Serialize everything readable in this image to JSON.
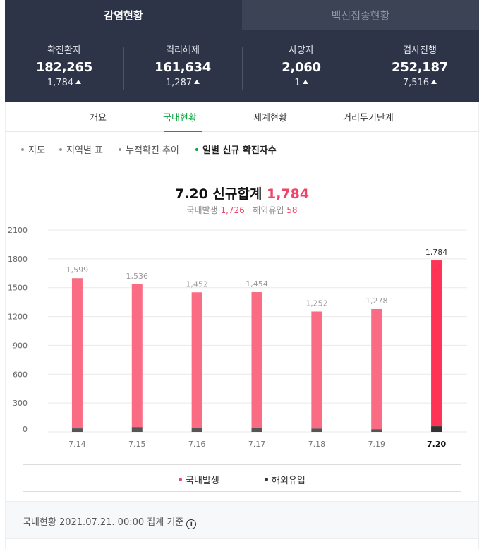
{
  "tabs": {
    "active": "감염현황",
    "inactive": "백신접종현황"
  },
  "stats": [
    {
      "label": "확진환자",
      "value": "182,265",
      "change": "1,784"
    },
    {
      "label": "격리해제",
      "value": "161,634",
      "change": "1,287"
    },
    {
      "label": "사망자",
      "value": "2,060",
      "change": "1"
    },
    {
      "label": "검사진행",
      "value": "252,187",
      "change": "7,516"
    }
  ],
  "subnav": [
    "개요",
    "국내현황",
    "세계현황",
    "거리두기단계"
  ],
  "filters": [
    "지도",
    "지역별 표",
    "누적확진 추이",
    "일별 신규 확진자수"
  ],
  "chart_title": {
    "date": "7.20",
    "label": "신규합계",
    "total": "1,784"
  },
  "chart_sub": {
    "domestic_label": "국내발생",
    "domestic": "1,726",
    "overseas_label": "해외유입",
    "overseas": "58"
  },
  "chart_data": {
    "type": "bar",
    "categories": [
      "7.14",
      "7.15",
      "7.16",
      "7.17",
      "7.18",
      "7.19",
      "7.20"
    ],
    "series": [
      {
        "name": "국내발생",
        "values": [
          1563,
          1486,
          1410,
          1412,
          1218,
          1250,
          1726
        ]
      },
      {
        "name": "해외유입",
        "values": [
          36,
          50,
          42,
          42,
          34,
          28,
          58
        ]
      }
    ],
    "totals": [
      1599,
      1536,
      1452,
      1454,
      1252,
      1278,
      1784
    ],
    "total_labels": [
      "1,599",
      "1,536",
      "1,452",
      "1,454",
      "1,252",
      "1,278",
      "1,784"
    ],
    "yticks": [
      0,
      300,
      600,
      900,
      1200,
      1500,
      1800,
      2100
    ],
    "ylim": [
      0,
      2100
    ],
    "grid": true,
    "legend_position": "bottom",
    "colors": {
      "domestic": "#fa6b84",
      "domestic_highlight": "#ff3355",
      "overseas": "#555555",
      "overseas_highlight": "#333333"
    }
  },
  "footer": {
    "text": "국내현황 2021.07.21. 00:00 집계 기준",
    "info": "i"
  }
}
